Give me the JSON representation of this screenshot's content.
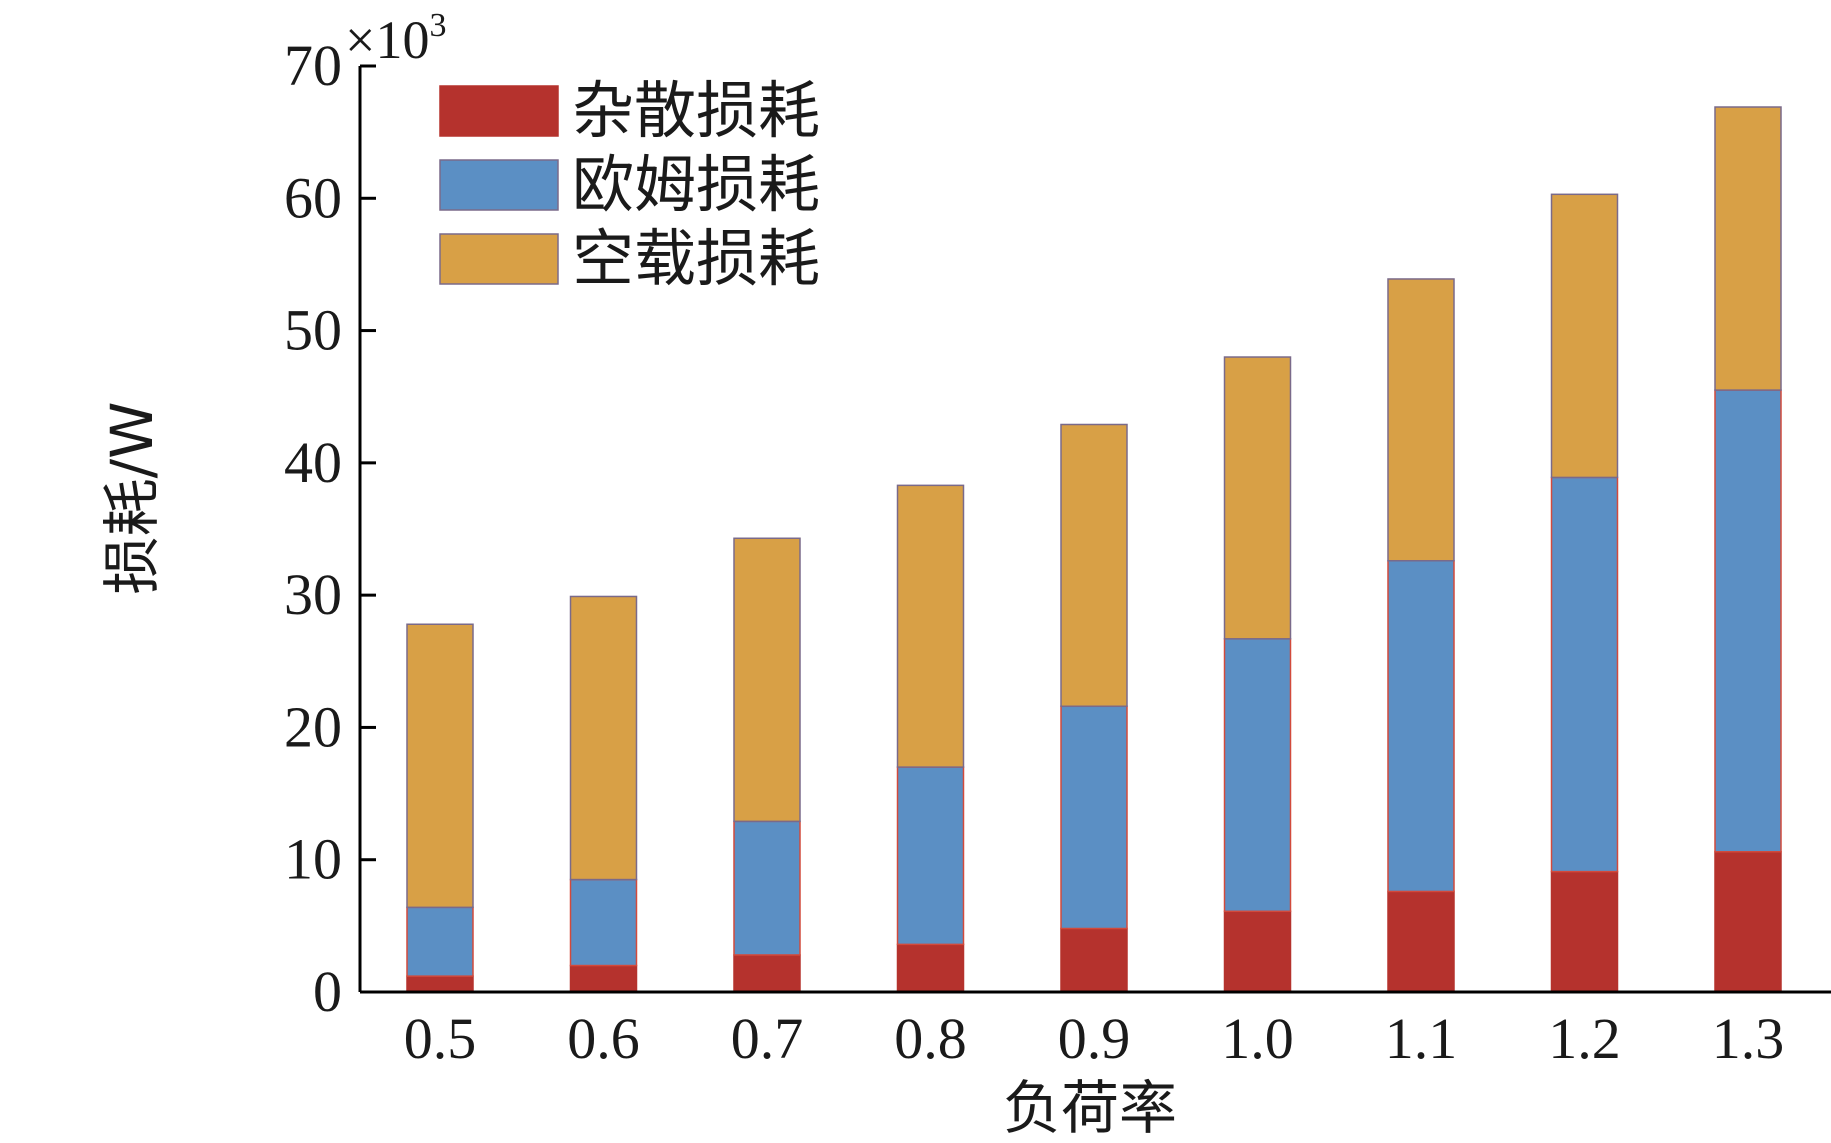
{
  "chart_data": {
    "type": "bar",
    "stacked": true,
    "categories": [
      "0.5",
      "0.6",
      "0.7",
      "0.8",
      "0.9",
      "1.0",
      "1.1",
      "1.2",
      "1.3"
    ],
    "series": [
      {
        "name": "杂散损耗",
        "color": "#b5322d",
        "values": [
          1.2,
          2.0,
          2.8,
          3.6,
          4.8,
          6.1,
          7.6,
          9.1,
          10.6
        ]
      },
      {
        "name": "欧姆损耗",
        "color": "#5b8fc4",
        "values": [
          5.2,
          6.5,
          10.1,
          13.4,
          16.8,
          20.6,
          25.0,
          29.8,
          34.9
        ]
      },
      {
        "name": "空载损耗",
        "color": "#d8a046",
        "values": [
          21.4,
          21.4,
          21.4,
          21.3,
          21.3,
          21.3,
          21.3,
          21.4,
          21.4
        ]
      }
    ],
    "xlabel": "负荷率",
    "ylabel": "损耗/W",
    "ylim": [
      0,
      70
    ],
    "yticks": [
      "0",
      "10",
      "20",
      "30",
      "40",
      "50",
      "60",
      "70"
    ],
    "y_multiplier": {
      "base": "×10",
      "exponent": "3"
    },
    "grid": false,
    "legend_position": "top-left"
  }
}
